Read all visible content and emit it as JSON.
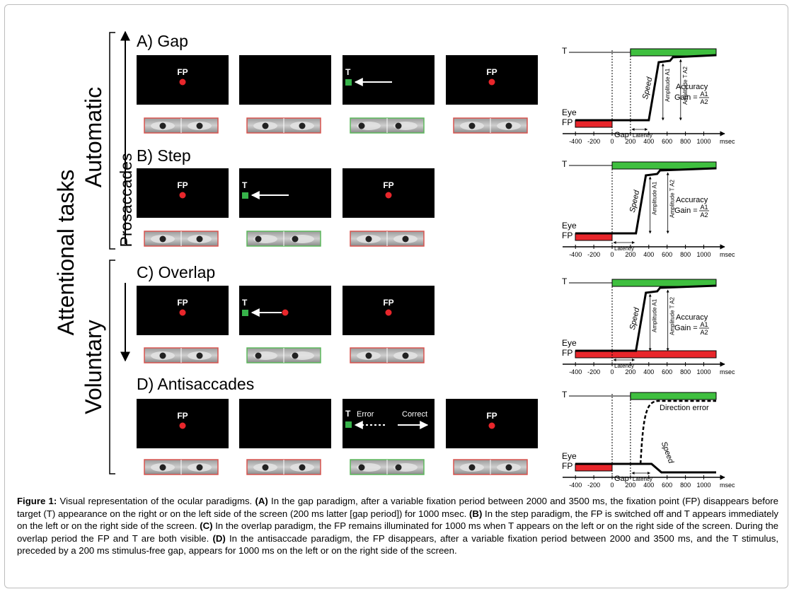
{
  "labels": {
    "attentional_tasks": "Attentional tasks",
    "automatic": "Automatic",
    "voluntary": "Voluntary",
    "prosaccades": "Prosaccades"
  },
  "panels": [
    {
      "id": "A",
      "title": "A) Gap"
    },
    {
      "id": "B",
      "title": "B) Step"
    },
    {
      "id": "C",
      "title": "C) Overlap"
    },
    {
      "id": "D",
      "title": "D) Antisaccades"
    }
  ],
  "stimulus": {
    "fp": "FP",
    "t": "T",
    "error": "Error",
    "correct": "Correct"
  },
  "graph": {
    "t_label": "T",
    "eye_label": "Eye",
    "fp_label": "FP",
    "x_ticks": [
      "-400",
      "-200",
      "0",
      "200",
      "400",
      "600",
      "800",
      "1000"
    ],
    "x_unit": "msec",
    "gap": "Gap",
    "latency": "Latency",
    "speed": "Speed",
    "amplitude_a1": "Amplitude A1",
    "amplitude_ta2": "Amplitude T A2",
    "accuracy": "Accuracy",
    "gain": "Gain =",
    "a1": "A1",
    "a2": "A2",
    "direction_error": "Direction error"
  },
  "caption": {
    "figure_label": "Figure 1:",
    "intro": " Visual representation of the ocular paradigms. ",
    "a_label": "(A)",
    "a_text": " In the gap paradigm, after a variable fixation period between 2000 and 3500 ms, the fixation point (FP) disappears before target (T) appearance on the right or on the left side of the screen (200 ms latter [gap period]) for 1000 msec. ",
    "b_label": "(B)",
    "b_text": " In the step paradigm, the FP is switched off and T appears immediately on the left or on the right side of the screen. ",
    "c_label": "(C)",
    "c_text": " In the overlap paradigm, the FP remains illuminated for 1000 ms when T appears on the left or on the right side of the screen. During the overlap period the FP and T are both visible. ",
    "d_label": "(D)",
    "d_text": " In the antisaccade paradigm, the FP disappears, after a variable fixation period between 2000 and 3500 ms, and the T stimulus, preceded by a 200 ms stimulus-free gap, appears for 1000 ms on the left or on the right side of the screen."
  },
  "colors": {
    "fp_dot": "#e8262b",
    "target": "#37b34a",
    "green_bar": "#3fbf3f",
    "red_bar": "#e8262b",
    "screen": "#000000",
    "red_border": "#d9534f",
    "green_border": "#5cb85c"
  }
}
